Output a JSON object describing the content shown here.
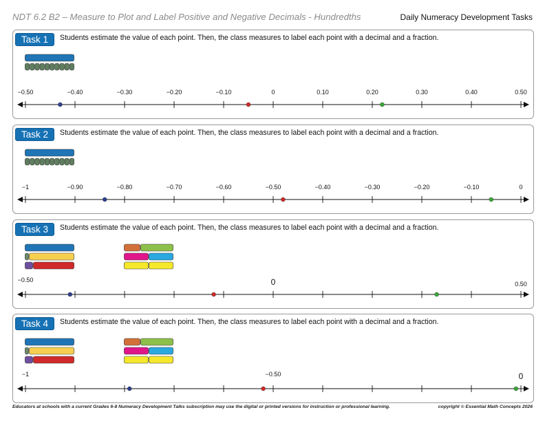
{
  "header": {
    "title": "NDT 6.2 B2 – Measure to Plot and Label Positive and Negative Decimals - Hundredths",
    "subtitle": "Daily Numeracy Development Tasks"
  },
  "tasks": [
    {
      "label": "Task 1",
      "instruction": "Students estimate the value of each point. Then, the class measures to label each point with a decimal and a fraction.",
      "number_line": {
        "min": -0.5,
        "max": 0.5,
        "ticks": [
          -0.5,
          -0.4,
          -0.3,
          -0.2,
          -0.1,
          0,
          0.1,
          0.2,
          0.3,
          0.4,
          0.5
        ],
        "tick_labels": [
          "−0.50",
          "−0.40",
          "−0.30",
          "−0.20",
          "−0.10",
          "0",
          "0.10",
          "0.20",
          "0.30",
          "0.40",
          "0.50"
        ],
        "points": [
          {
            "value": -0.43,
            "color": "#2e3f8f"
          },
          {
            "value": -0.05,
            "color": "#d02a2a"
          },
          {
            "value": 0.22,
            "color": "#3aa83a"
          }
        ]
      },
      "models": [
        {
          "rows": [
            [
              {
                "units": 10,
                "color": "#1f75b5"
              }
            ],
            [
              {
                "units": 1,
                "color": "#5f7f5f"
              },
              {
                "units": 1,
                "color": "#5f7f5f"
              },
              {
                "units": 1,
                "color": "#5f7f5f"
              },
              {
                "units": 1,
                "color": "#5f7f5f"
              },
              {
                "units": 1,
                "color": "#5f7f5f"
              },
              {
                "units": 1,
                "color": "#5f7f5f"
              },
              {
                "units": 1,
                "color": "#5f7f5f"
              },
              {
                "units": 1,
                "color": "#5f7f5f"
              },
              {
                "units": 1,
                "color": "#5f7f5f"
              },
              {
                "units": 1,
                "color": "#5f7f5f"
              }
            ]
          ]
        }
      ]
    },
    {
      "label": "Task 2",
      "instruction": "Students estimate the value of each point. Then, the class measures to label each point with a decimal and a fraction.",
      "number_line": {
        "min": -1,
        "max": 0,
        "ticks": [
          -1,
          -0.9,
          -0.8,
          -0.7,
          -0.6,
          -0.5,
          -0.4,
          -0.3,
          -0.2,
          -0.1,
          0
        ],
        "tick_labels": [
          "−1",
          "−0.90",
          "−0.80",
          "−0.70",
          "−0.60",
          "−0.50",
          "−0.40",
          "−0.30",
          "−0.20",
          "−0.10",
          "0"
        ],
        "points": [
          {
            "value": -0.84,
            "color": "#2e3f8f"
          },
          {
            "value": -0.48,
            "color": "#d02a2a"
          },
          {
            "value": -0.06,
            "color": "#3aa83a"
          }
        ]
      },
      "models": [
        {
          "rows": [
            [
              {
                "units": 10,
                "color": "#1f75b5"
              }
            ],
            [
              {
                "units": 1,
                "color": "#5f7f5f"
              },
              {
                "units": 1,
                "color": "#5f7f5f"
              },
              {
                "units": 1,
                "color": "#5f7f5f"
              },
              {
                "units": 1,
                "color": "#5f7f5f"
              },
              {
                "units": 1,
                "color": "#5f7f5f"
              },
              {
                "units": 1,
                "color": "#5f7f5f"
              },
              {
                "units": 1,
                "color": "#5f7f5f"
              },
              {
                "units": 1,
                "color": "#5f7f5f"
              },
              {
                "units": 1,
                "color": "#5f7f5f"
              },
              {
                "units": 1,
                "color": "#5f7f5f"
              }
            ]
          ]
        }
      ]
    },
    {
      "label": "Task 3",
      "instruction": "Students estimate the value of each point. Then, the class measures to label each point with a decimal and a fraction.",
      "number_line": {
        "min": -0.5,
        "max": 0.5,
        "ticks": [
          -0.5,
          -0.4,
          -0.3,
          -0.2,
          -0.1,
          0,
          0.1,
          0.2,
          0.3,
          0.4,
          0.5
        ],
        "tick_labels": [
          "−0.50",
          "",
          "",
          "",
          "",
          "0",
          "",
          "",
          "",
          "",
          "0.50"
        ],
        "points": [
          {
            "value": -0.41,
            "color": "#2e3f8f"
          },
          {
            "value": -0.12,
            "color": "#d02a2a"
          },
          {
            "value": 0.33,
            "color": "#3aa83a"
          }
        ]
      },
      "models": [
        {
          "rows": [
            [
              {
                "units": 12,
                "color": "#1f75b5"
              }
            ],
            [
              {
                "units": 1,
                "color": "#6d8a6d"
              },
              {
                "units": 11,
                "color": "#f6cf4f"
              }
            ],
            [
              {
                "units": 2,
                "color": "#6e4f9e"
              },
              {
                "units": 10,
                "color": "#d02a2a"
              }
            ]
          ]
        },
        {
          "rows": [
            [
              {
                "units": 4,
                "color": "#d2703a"
              },
              {
                "units": 8,
                "color": "#8dc04a"
              }
            ],
            [
              {
                "units": 6,
                "color": "#e0168a"
              },
              {
                "units": 6,
                "color": "#2aa8e0"
              }
            ],
            [
              {
                "units": 6,
                "color": "#f5e82a"
              },
              {
                "units": 6,
                "color": "#f5e82a"
              }
            ]
          ]
        }
      ]
    },
    {
      "label": "Task 4",
      "instruction": "Students estimate the value of each point. Then, the class measures to label each point with a decimal and a fraction.",
      "number_line": {
        "min": -1,
        "max": 0,
        "ticks": [
          -1,
          -0.9,
          -0.8,
          -0.7,
          -0.6,
          -0.5,
          -0.4,
          -0.3,
          -0.2,
          -0.1,
          0
        ],
        "tick_labels": [
          "−1",
          "",
          "",
          "",
          "",
          "−0.50",
          "",
          "",
          "",
          "",
          "0"
        ],
        "points": [
          {
            "value": -0.79,
            "color": "#2e3f8f"
          },
          {
            "value": -0.52,
            "color": "#d02a2a"
          },
          {
            "value": -0.01,
            "color": "#3aa83a"
          }
        ]
      },
      "models": [
        {
          "rows": [
            [
              {
                "units": 12,
                "color": "#1f75b5"
              }
            ],
            [
              {
                "units": 1,
                "color": "#6d8a6d"
              },
              {
                "units": 11,
                "color": "#f6cf4f"
              }
            ],
            [
              {
                "units": 2,
                "color": "#6e4f9e"
              },
              {
                "units": 10,
                "color": "#d02a2a"
              }
            ]
          ]
        },
        {
          "rows": [
            [
              {
                "units": 4,
                "color": "#d2703a"
              },
              {
                "units": 8,
                "color": "#8dc04a"
              }
            ],
            [
              {
                "units": 6,
                "color": "#e0168a"
              },
              {
                "units": 6,
                "color": "#2aa8e0"
              }
            ],
            [
              {
                "units": 6,
                "color": "#f5e82a"
              },
              {
                "units": 6,
                "color": "#f5e82a"
              }
            ]
          ]
        }
      ]
    }
  ],
  "footer": {
    "left": "Educators at schools with a current Grades 6-8 Numeracy Development Talks subscription may use the digital or printed versions for instruction or professional learning.",
    "right": "copyright © Essential Math Concepts 2026"
  }
}
